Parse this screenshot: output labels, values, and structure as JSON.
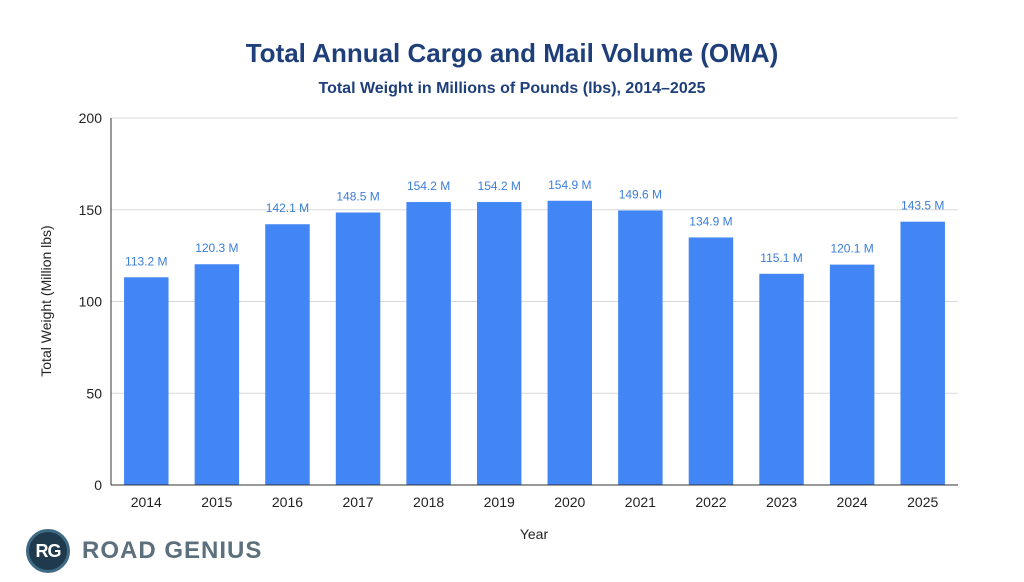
{
  "chart_data": {
    "type": "bar",
    "title": "Total Annual Cargo and Mail Volume (OMA)",
    "subtitle": "Total Weight in Millions of Pounds (lbs), 2014–2025",
    "xlabel": "Year",
    "ylabel": "Total Weight (Million lbs)",
    "ylim": [
      0,
      200
    ],
    "yticks": [
      0,
      50,
      100,
      150,
      200
    ],
    "grid": true,
    "categories": [
      "2014",
      "2015",
      "2016",
      "2017",
      "2018",
      "2019",
      "2020",
      "2021",
      "2022",
      "2023",
      "2024",
      "2025"
    ],
    "values": [
      113.2,
      120.3,
      142.1,
      148.5,
      154.2,
      154.2,
      154.9,
      149.6,
      134.9,
      115.1,
      120.1,
      143.5
    ],
    "data_labels": [
      "113.2 M",
      "120.3 M",
      "142.1 M",
      "148.5 M",
      "154.2 M",
      "154.2 M",
      "154.9 M",
      "149.6 M",
      "134.9 M",
      "115.1 M",
      "120.1 M",
      "143.5 M"
    ],
    "bar_color": "#4285f4",
    "label_color": "#3b7dd8"
  },
  "logo": {
    "badge": "RG",
    "text": "ROAD GENIUS"
  }
}
